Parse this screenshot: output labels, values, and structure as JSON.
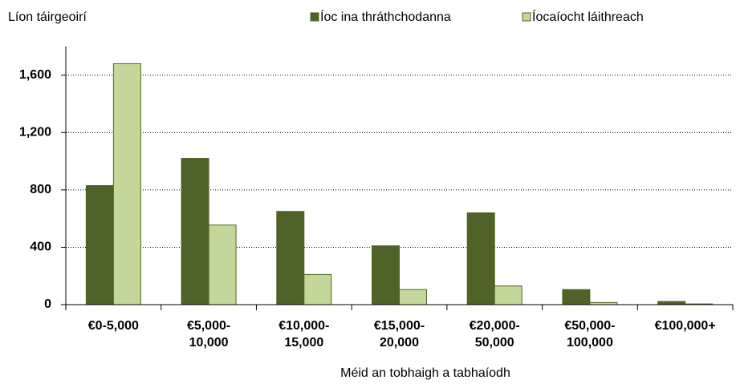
{
  "chart_data": {
    "type": "bar",
    "y_label": "Líon táirgeoirí",
    "x_label": "Méid an tobhaigh a tabhaíodh",
    "categories": [
      "€0-5,000",
      "€5,000-\n10,000",
      "€10,000-\n15,000",
      "€15,000-\n20,000",
      "€20,000-\n50,000",
      "€50,000-\n100,000",
      "€100,000+"
    ],
    "series": [
      {
        "name": "Íoc ina thráthchodanna",
        "color": "#4f6228",
        "values": [
          830,
          1020,
          650,
          410,
          640,
          105,
          22
        ]
      },
      {
        "name": "Íocaíocht láithreach",
        "color": "#c4d79b",
        "values": [
          1680,
          555,
          210,
          105,
          130,
          15,
          5
        ]
      }
    ],
    "ylim": [
      0,
      1800
    ],
    "yticks": [
      0,
      400,
      800,
      {
        "value": 1200,
        "label": "1,200"
      },
      {
        "value": 1600,
        "label": "1,600"
      }
    ],
    "grid": true,
    "legend": "top"
  }
}
